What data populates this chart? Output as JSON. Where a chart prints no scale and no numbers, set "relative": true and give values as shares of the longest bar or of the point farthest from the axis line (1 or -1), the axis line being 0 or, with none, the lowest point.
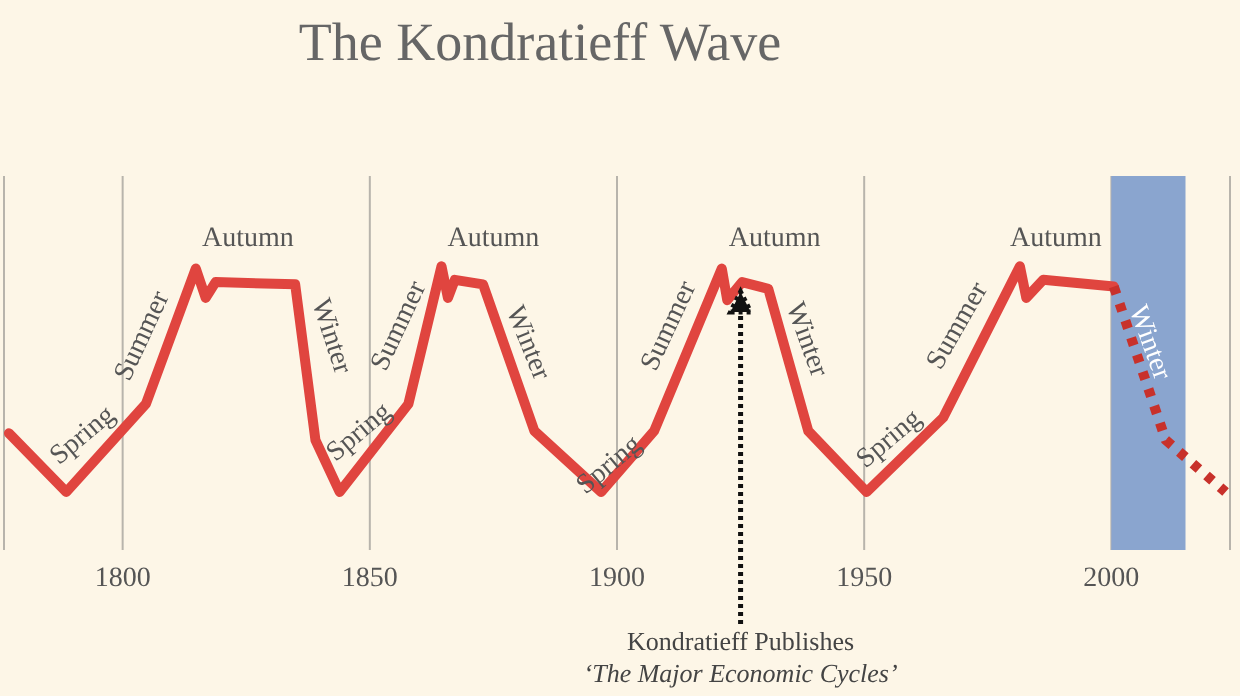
{
  "chart_data": {
    "type": "line",
    "title": "The Kondratieff Wave",
    "relative": true,
    "xlim": [
      1776,
      2024
    ],
    "xticks": [
      1800,
      1850,
      1900,
      1950,
      2000
    ],
    "grid": "x",
    "legend": false,
    "marker": "none",
    "series": [
      {
        "color": "#e0453f",
        "line_style": "solid",
        "x": [
          1777,
          1788.6,
          1804.7,
          1814.8,
          1816.8,
          1818.8,
          1834.9,
          1839,
          1843.9,
          1857.8,
          1864.5,
          1865.8,
          1867.2,
          1872.9,
          1883.3,
          1896.8,
          1907.5,
          1921.2,
          1922.3,
          1925.3,
          1930.6,
          1938.7,
          1950.5,
          1966,
          1981.5,
          1982.8,
          1986.2,
          2000.5
        ],
        "values": [
          0.26,
          0,
          0.39,
          0.99,
          0.86,
          0.93,
          0.92,
          0.23,
          0,
          0.39,
          1,
          0.86,
          0.94,
          0.92,
          0.27,
          0,
          0.27,
          0.99,
          0.85,
          0.93,
          0.9,
          0.27,
          0,
          0.33,
          1,
          0.86,
          0.94,
          0.91
        ]
      },
      {
        "color": "#c8312b",
        "line_style": "dotted",
        "x": [
          2000.5,
          2011,
          2023.1
        ],
        "values": [
          0.91,
          0.23,
          0
        ]
      }
    ],
    "bands": [
      {
        "axis": "x",
        "from": 2000,
        "to": 2015,
        "label": "Winter",
        "color": "#8aa5cf"
      }
    ],
    "annotations": [
      "Spring",
      "Summer",
      "Autumn",
      "Winter",
      "Spring",
      "Summer",
      "Autumn",
      "Winter",
      "Spring",
      "Summer",
      "Autumn",
      "Winter",
      "Spring",
      "Summer",
      "Autumn",
      "‘The Major Economic Cycles’"
    ],
    "ref_lines": [
      {
        "axis": "x",
        "value": 1925,
        "label": "Kondratieff Publishes",
        "line_style": "dotted",
        "color": "#111111"
      }
    ]
  }
}
